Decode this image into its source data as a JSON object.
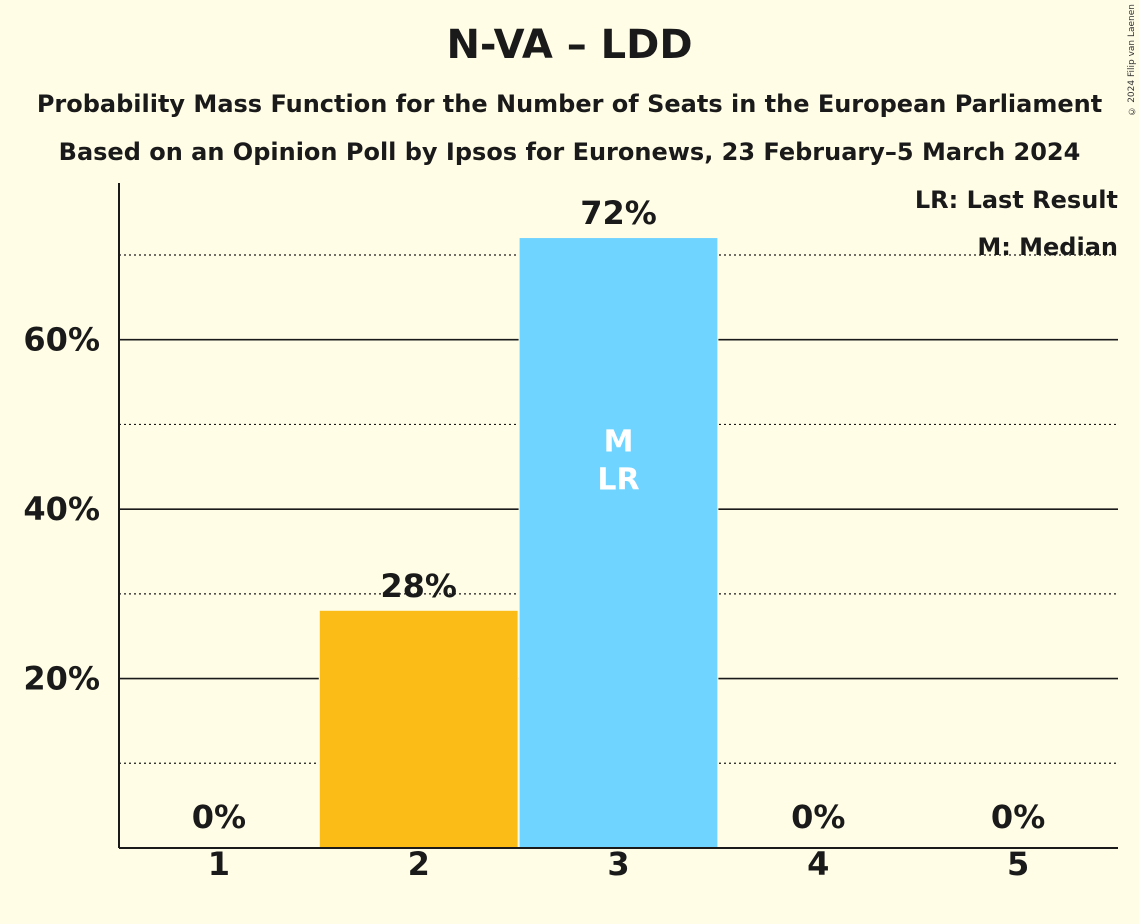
{
  "title": "N-VA – LDD",
  "subtitle_1": "Probability Mass Function for the Number of Seats in the European Parliament",
  "subtitle_2": "Based on an Opinion Poll by Ipsos for Euronews, 23 February–5 March 2024",
  "copyright": "© 2024 Filip van Laenen",
  "legend": {
    "last_result": "LR: Last Result",
    "median": "M: Median"
  },
  "colors": {
    "background": "#FFFDE6",
    "bar_default": "#FBBC18",
    "bar_highlight": "#6FD4FF",
    "text": "#1a1a1a"
  },
  "chart_data": {
    "type": "bar",
    "categories": [
      "1",
      "2",
      "3",
      "4",
      "5"
    ],
    "values": [
      0,
      28,
      72,
      0,
      0
    ],
    "value_labels": [
      "0%",
      "28%",
      "72%",
      "0%",
      "0%"
    ],
    "bar_colors": [
      "#FBBC18",
      "#FBBC18",
      "#6FD4FF",
      "#FBBC18",
      "#FBBC18"
    ],
    "in_bar_labels": [
      "",
      "",
      "M\nLR",
      "",
      ""
    ],
    "y_ticks": [
      20,
      40,
      60
    ],
    "y_tick_labels": [
      "20%",
      "40%",
      "60%"
    ],
    "y_minor_ticks": [
      10,
      30,
      50,
      70
    ],
    "ylim": [
      0,
      78.5
    ],
    "grid": true
  }
}
